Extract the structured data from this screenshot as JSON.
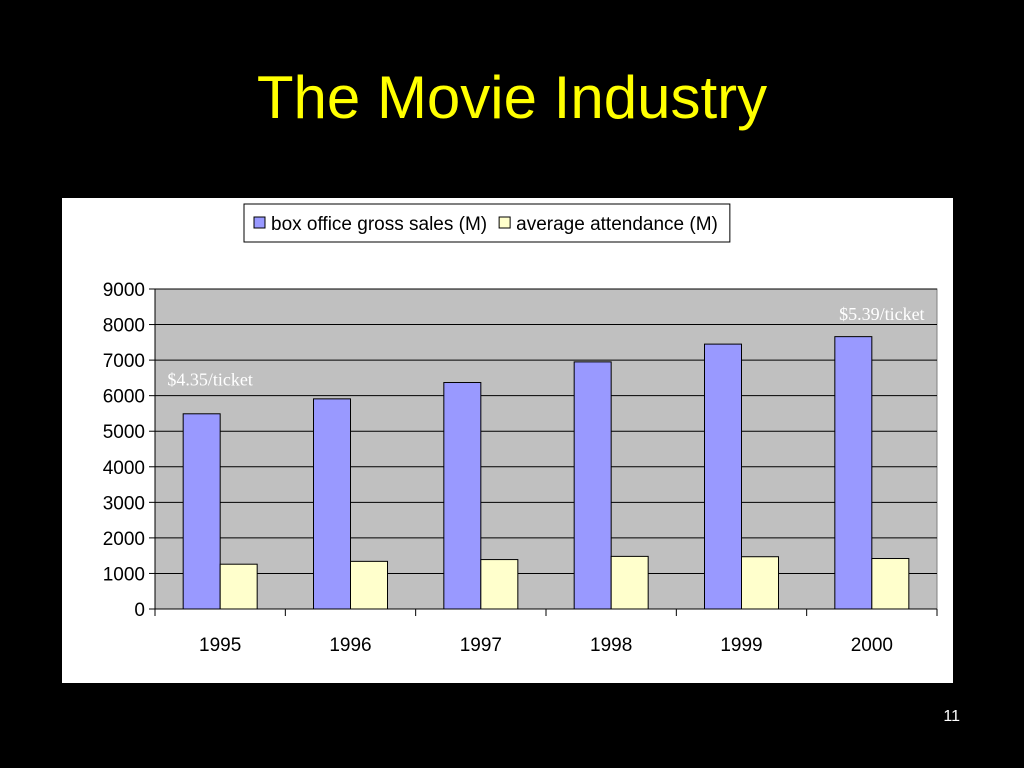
{
  "slide": {
    "title": "The Movie Industry",
    "number": "11"
  },
  "chart_data": {
    "type": "bar",
    "categories": [
      "1995",
      "1996",
      "1997",
      "1998",
      "1999",
      "2000"
    ],
    "series": [
      {
        "name": "box office gross sales (M)",
        "color": "#9999ff",
        "values": [
          5490,
          5910,
          6370,
          6950,
          7450,
          7660
        ]
      },
      {
        "name": "average attendance (M)",
        "color": "#ffffcc",
        "values": [
          1260,
          1340,
          1390,
          1480,
          1470,
          1420
        ]
      }
    ],
    "ylim": [
      0,
      9000
    ],
    "ytick_step": 1000,
    "yticks": [
      "0",
      "1000",
      "2000",
      "3000",
      "4000",
      "5000",
      "6000",
      "7000",
      "8000",
      "9000"
    ],
    "grid": true,
    "plot_background": "#c0c0c0",
    "legend_position": "top-center",
    "annotations": [
      {
        "text": "$4.35/ticket",
        "category": "1995",
        "near_value": 6450
      },
      {
        "text": "$5.39/ticket",
        "category": "2000",
        "near_value": 8300
      }
    ]
  }
}
